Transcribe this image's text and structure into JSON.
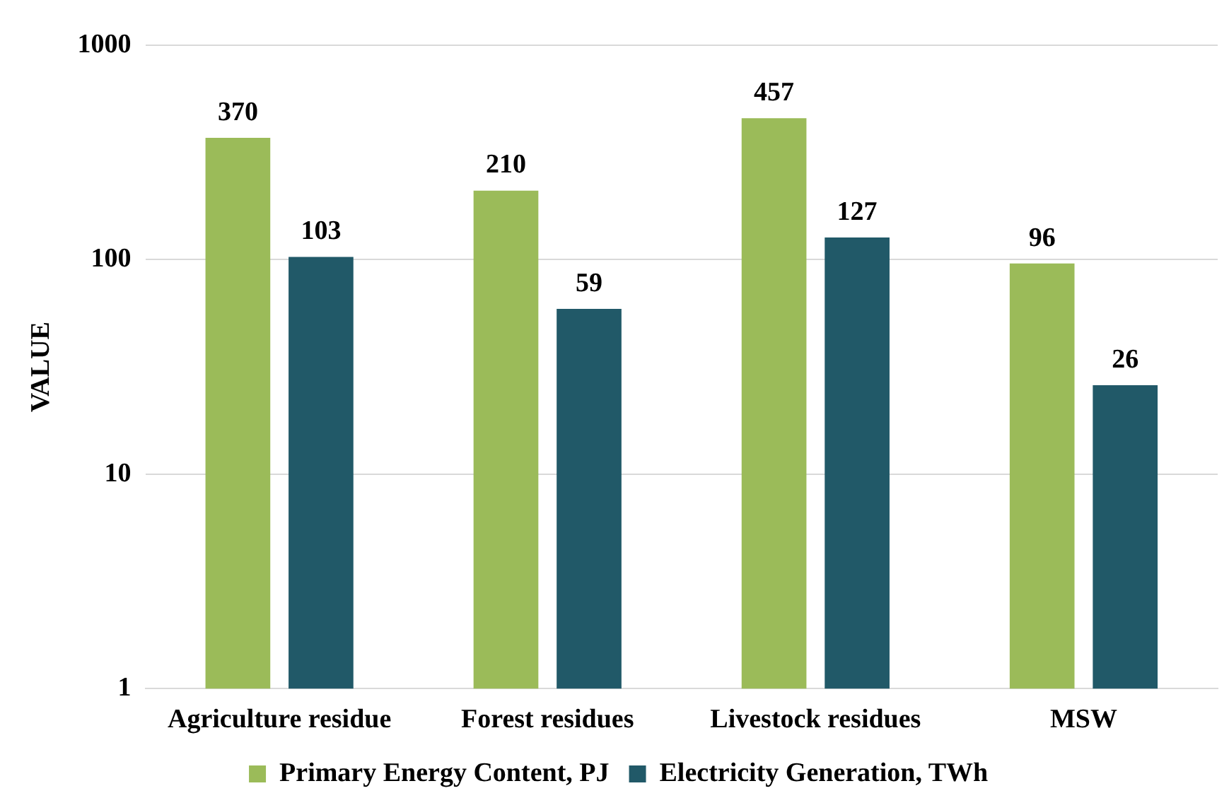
{
  "chart_data": {
    "type": "bar",
    "ylabel": "VALUE",
    "categories": [
      "Agriculture residue",
      "Forest residues",
      "Livestock residues",
      "MSW"
    ],
    "series": [
      {
        "name": "Primary Energy Content, PJ",
        "color": "#9bbb59",
        "values": [
          370,
          210,
          457,
          96
        ]
      },
      {
        "name": "Electricity Generation, TWh",
        "color": "#215968",
        "values": [
          103,
          59,
          127,
          26
        ]
      }
    ],
    "log": "y",
    "ylim": [
      1,
      1000
    ],
    "yticks": [
      1,
      10,
      100,
      1000
    ],
    "grid": "y",
    "legend": "bottom",
    "data_labels": true
  }
}
